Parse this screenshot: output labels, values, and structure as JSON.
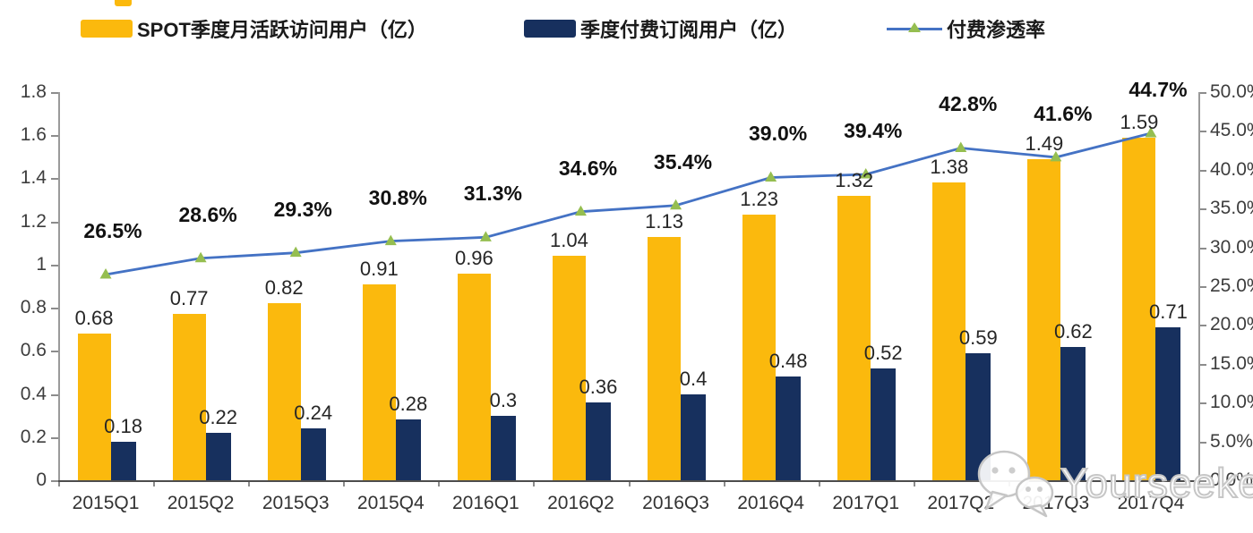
{
  "legend": {
    "items": [
      {
        "label": "SPOT季度月活跃访问用户（亿）",
        "swatch": "bar",
        "color": "#FBB90D"
      },
      {
        "label": "季度付费订阅用户（亿）",
        "swatch": "bar",
        "color": "#17305E"
      },
      {
        "label": "付费渗透率",
        "swatch": "line-marker",
        "line_color": "#4472C4",
        "marker_color": "#95BE50"
      }
    ]
  },
  "watermark": {
    "text": "Yourseeker",
    "icon": "wechat-bubbles-icon"
  },
  "chart_data": {
    "type": "combo: clustered bar + line",
    "title": "",
    "categories": [
      "2015Q1",
      "2015Q2",
      "2015Q3",
      "2015Q4",
      "2016Q1",
      "2016Q2",
      "2016Q3",
      "2016Q4",
      "2017Q1",
      "2017Q2",
      "2017Q3",
      "2017Q4"
    ],
    "series": [
      {
        "name": "SPOT季度月活跃访问用户（亿）",
        "type": "bar",
        "axis": "left",
        "color": "#FBB90D",
        "values": [
          0.68,
          0.77,
          0.82,
          0.91,
          0.96,
          1.04,
          1.13,
          1.23,
          1.32,
          1.38,
          1.49,
          1.59
        ],
        "labels": [
          "0.68",
          "0.77",
          "0.82",
          "0.91",
          "0.96",
          "1.04",
          "1.13",
          "1.23",
          "1.32",
          "1.38",
          "1.49",
          "1.59"
        ]
      },
      {
        "name": "季度付费订阅用户（亿）",
        "type": "bar",
        "axis": "left",
        "color": "#17305E",
        "values": [
          0.18,
          0.22,
          0.24,
          0.28,
          0.3,
          0.36,
          0.4,
          0.48,
          0.52,
          0.59,
          0.62,
          0.71
        ],
        "labels": [
          "0.18",
          "0.22",
          "0.24",
          "0.28",
          "0.3",
          "0.36",
          "0.4",
          "0.48",
          "0.52",
          "0.59",
          "0.62",
          "0.71"
        ]
      },
      {
        "name": "付费渗透率",
        "type": "line",
        "axis": "right",
        "line_color": "#4472C4",
        "marker": "triangle",
        "marker_color": "#95BE50",
        "values": [
          26.5,
          28.6,
          29.3,
          30.8,
          31.3,
          34.6,
          35.4,
          39.0,
          39.4,
          42.8,
          41.6,
          44.7
        ],
        "labels": [
          "26.5%",
          "28.6%",
          "29.3%",
          "30.8%",
          "31.3%",
          "34.6%",
          "35.4%",
          "39.0%",
          "39.4%",
          "42.8%",
          "41.6%",
          "44.7%"
        ]
      }
    ],
    "left_axis": {
      "min": 0,
      "max": 1.8,
      "tick_labels": [
        "0",
        "0.2",
        "0.4",
        "0.6",
        "0.8",
        "1",
        "1.2",
        "1.4",
        "1.6",
        "1.8"
      ]
    },
    "right_axis": {
      "min": 0,
      "max": 50,
      "tick_labels": [
        "0.0%",
        "5.0%",
        "10.0%",
        "15.0%",
        "20.0%",
        "25.0%",
        "30.0%",
        "35.0%",
        "40.0%",
        "45.0%",
        "50.0%"
      ]
    },
    "grid": false,
    "legend_position": "top"
  }
}
